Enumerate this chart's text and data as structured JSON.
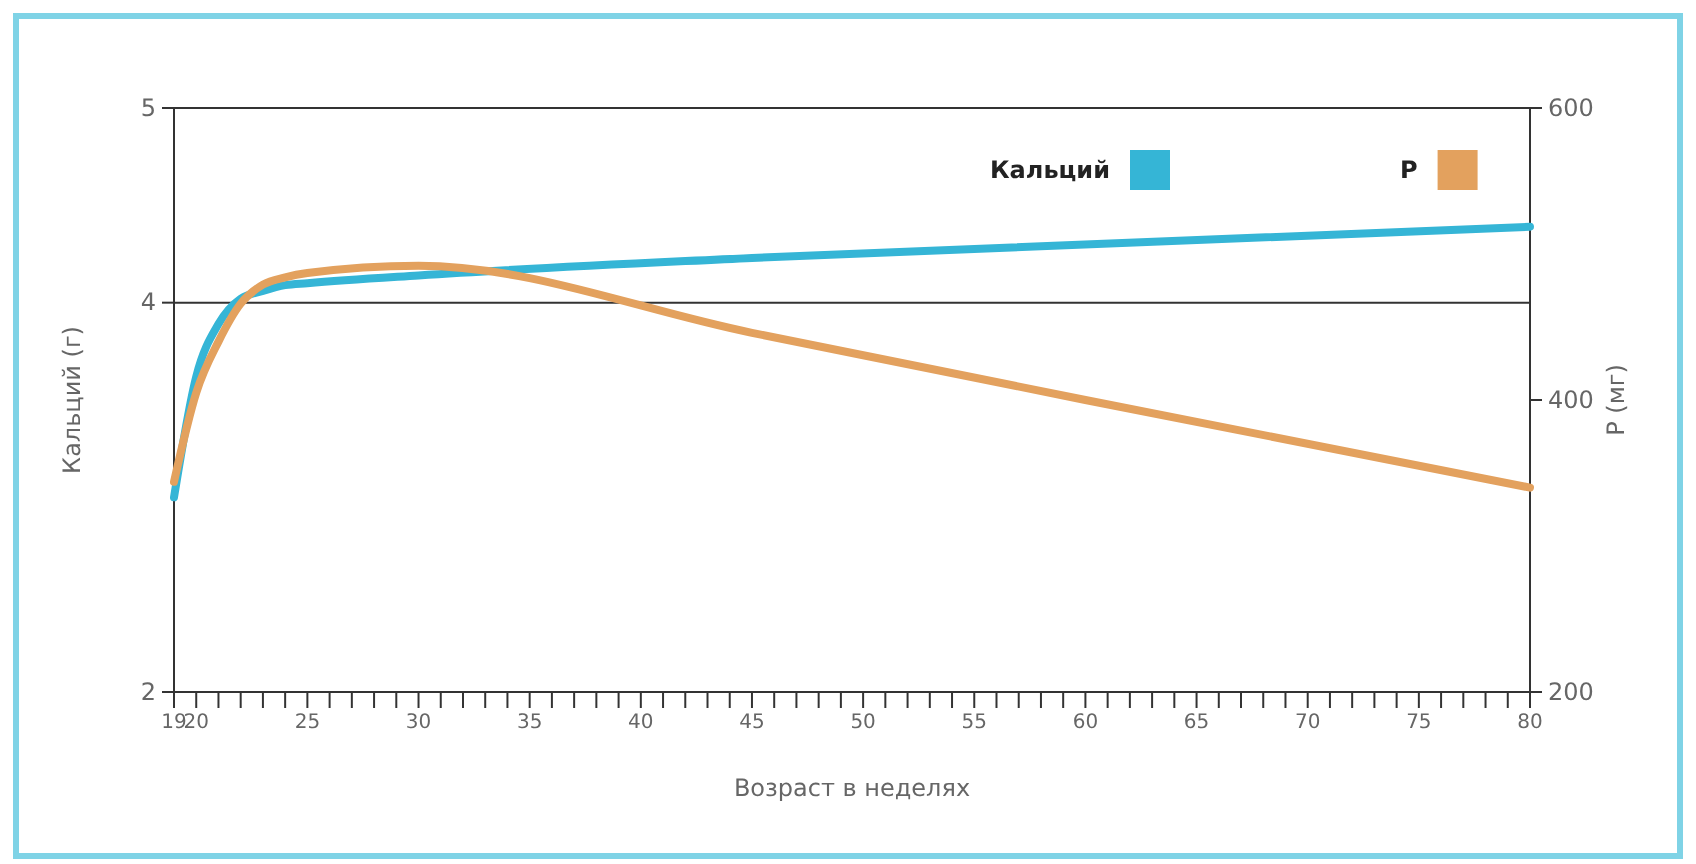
{
  "chart_data": {
    "type": "line",
    "xlabel": "Возраст в неделях",
    "ylabel": "Кальций (г)",
    "y2label": "P (мг)",
    "xlim": [
      19,
      80
    ],
    "xticks": [
      19,
      20,
      {
        "value": 21,
        "label": null
      },
      {
        "value": 22,
        "label": null
      },
      {
        "value": 23,
        "label": null
      },
      {
        "value": 24,
        "label": null
      },
      25,
      {
        "value": 26,
        "label": null
      },
      {
        "value": 27,
        "label": null
      },
      {
        "value": 28,
        "label": null
      },
      {
        "value": 29,
        "label": null
      },
      30,
      {
        "value": 31,
        "label": null
      },
      {
        "value": 32,
        "label": null
      },
      {
        "value": 33,
        "label": null
      },
      {
        "value": 34,
        "label": null
      },
      35,
      {
        "value": 36,
        "label": null
      },
      {
        "value": 37,
        "label": null
      },
      {
        "value": 38,
        "label": null
      },
      {
        "value": 39,
        "label": null
      },
      40,
      {
        "value": 41,
        "label": null
      },
      {
        "value": 42,
        "label": null
      },
      {
        "value": 43,
        "label": null
      },
      {
        "value": 44,
        "label": null
      },
      45,
      {
        "value": 46,
        "label": null
      },
      {
        "value": 47,
        "label": null
      },
      {
        "value": 48,
        "label": null
      },
      {
        "value": 49,
        "label": null
      },
      50,
      {
        "value": 51,
        "label": null
      },
      {
        "value": 52,
        "label": null
      },
      {
        "value": 53,
        "label": null
      },
      {
        "value": 54,
        "label": null
      },
      55,
      {
        "value": 56,
        "label": null
      },
      {
        "value": 57,
        "label": null
      },
      {
        "value": 58,
        "label": null
      },
      {
        "value": 59,
        "label": null
      },
      60,
      {
        "value": 61,
        "label": null
      },
      {
        "value": 62,
        "label": null
      },
      {
        "value": 63,
        "label": null
      },
      {
        "value": 64,
        "label": null
      },
      65,
      {
        "value": 66,
        "label": null
      },
      {
        "value": 67,
        "label": null
      },
      {
        "value": 68,
        "label": null
      },
      {
        "value": 69,
        "label": null
      },
      70,
      {
        "value": 71,
        "label": null
      },
      {
        "value": 72,
        "label": null
      },
      {
        "value": 73,
        "label": null
      },
      {
        "value": 74,
        "label": null
      },
      75,
      {
        "value": 76,
        "label": null
      },
      {
        "value": 77,
        "label": null
      },
      {
        "value": 78,
        "label": null
      },
      {
        "value": 79,
        "label": null
      },
      80
    ],
    "ylim": [
      2,
      5
    ],
    "yticks": [
      2,
      4,
      5
    ],
    "y2lim": [
      200,
      600
    ],
    "y2ticks": [
      200,
      400,
      600
    ],
    "grid": "y",
    "legend": "top right",
    "series": [
      {
        "name": "Кальций",
        "color": "#35b5d6",
        "x": [
          19,
          20,
          21,
          22,
          23,
          24,
          25,
          30,
          45,
          80
        ],
        "values": [
          3.0,
          3.62,
          3.89,
          4.02,
          4.06,
          4.09,
          4.1,
          4.14,
          4.23,
          4.39
        ]
      },
      {
        "name": "P",
        "color": "#e3a15e",
        "axis": "y2",
        "x": [
          19,
          20,
          21,
          22,
          23,
          24,
          25,
          30,
          45,
          60,
          80
        ],
        "values": [
          344,
          405,
          440,
          466,
          479,
          484,
          487,
          492,
          446,
          400,
          340
        ]
      }
    ]
  }
}
